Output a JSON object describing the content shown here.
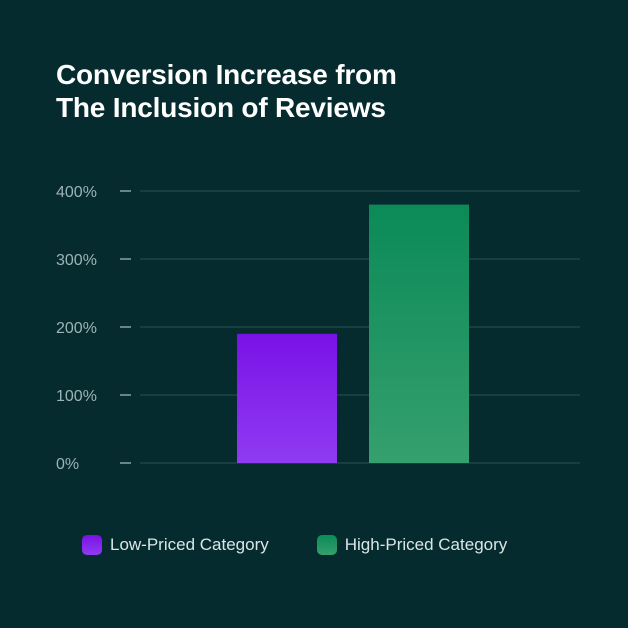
{
  "chart_data": {
    "type": "bar",
    "title": "Conversion Increase from The Inclusion of Reviews",
    "title_lines": [
      "Conversion Increase from",
      "The Inclusion of Reviews"
    ],
    "categories": [
      "Low-Priced Category",
      "High-Priced Category"
    ],
    "values": [
      190,
      380
    ],
    "y_ticks": [
      {
        "value": 400,
        "label": "400%"
      },
      {
        "value": 300,
        "label": "300%"
      },
      {
        "value": 200,
        "label": "200%"
      },
      {
        "value": 100,
        "label": "100%"
      },
      {
        "value": 0,
        "label": "0%"
      }
    ],
    "ylim": [
      0,
      400
    ],
    "ylabel": "",
    "xlabel": "",
    "grid": true,
    "legend": {
      "position": "bottom",
      "items": [
        {
          "label": "Low-Priced Category",
          "color_top": "#7A12E6",
          "color_bottom": "#8F3BF2"
        },
        {
          "label": "High-Priced Category",
          "color_top": "#0B8A58",
          "color_bottom": "#35A06E"
        }
      ]
    },
    "colors": {
      "background": "#062b2e",
      "grid": "#2a5053",
      "tick_text": "#9db4b6",
      "title": "#ffffff"
    }
  }
}
